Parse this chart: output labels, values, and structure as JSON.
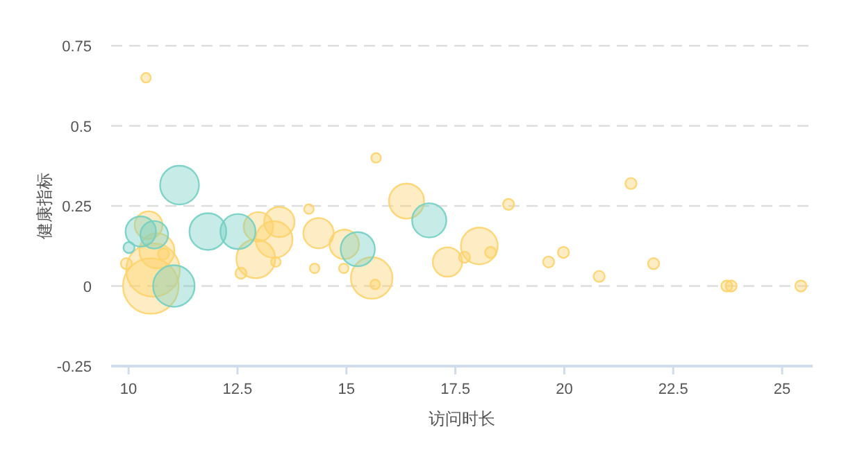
{
  "chart_data": {
    "type": "bubble",
    "xlabel": "访问时长",
    "ylabel": "健康指标",
    "xlim": [
      9.6,
      25.7
    ],
    "xticks": [
      10,
      12.5,
      15,
      17.5,
      20,
      22.5,
      25
    ],
    "ylim": [
      -0.25,
      0.75
    ],
    "yticks": [
      -0.25,
      0,
      0.25,
      0.5,
      0.75
    ],
    "grid": "y",
    "series": [
      {
        "color": "#fdd36b",
        "x": [
          10.4,
          10.56,
          10.51,
          10.46,
          10.65,
          9.95,
          10.8,
          12.58,
          12.92,
          12.98,
          13.34,
          13.46,
          13.38,
          14.14,
          14.36,
          14.27,
          14.95,
          14.94,
          15.58,
          15.66,
          15.68,
          16.38,
          17.32,
          17.71,
          18.05,
          18.31,
          18.72,
          19.64,
          19.98,
          20.8,
          21.53,
          22.05,
          23.73,
          23.83,
          25.43
        ],
        "values": [
          0.65,
          0.05,
          0,
          0.19,
          0.11,
          0.07,
          0.1,
          0.04,
          0.085,
          0.185,
          0.145,
          0.2,
          0.075,
          0.24,
          0.165,
          0.055,
          0.13,
          0.055,
          0.025,
          0.005,
          0.4,
          0.265,
          0.075,
          0.09,
          0.125,
          0.105,
          0.255,
          0.075,
          0.105,
          0.03,
          0.32,
          0.07,
          0,
          0,
          0
        ],
        "sizes": [
          0.03,
          0.93,
          1,
          0.25,
          0.4,
          0.04,
          0.04,
          0.04,
          0.49,
          0.28,
          0.44,
          0.3,
          0.03,
          0.03,
          0.3,
          0.03,
          0.28,
          0.03,
          0.56,
          0.03,
          0.03,
          0.4,
          0.28,
          0.04,
          0.44,
          0.04,
          0.04,
          0.04,
          0.04,
          0.04,
          0.04,
          0.04,
          0.04,
          0.04,
          0.04
        ]
      },
      {
        "color": "#73cfc3",
        "x": [
          11.17,
          10.28,
          10.59,
          10.01,
          11.04,
          11.82,
          12.51,
          15.26,
          16.9
        ],
        "values": [
          0.315,
          0.17,
          0.16,
          0.12,
          0,
          0.17,
          0.17,
          0.115,
          0.205
        ],
        "sizes": [
          0.49,
          0.3,
          0.25,
          0.04,
          0.56,
          0.44,
          0.4,
          0.38,
          0.38
        ]
      }
    ]
  }
}
